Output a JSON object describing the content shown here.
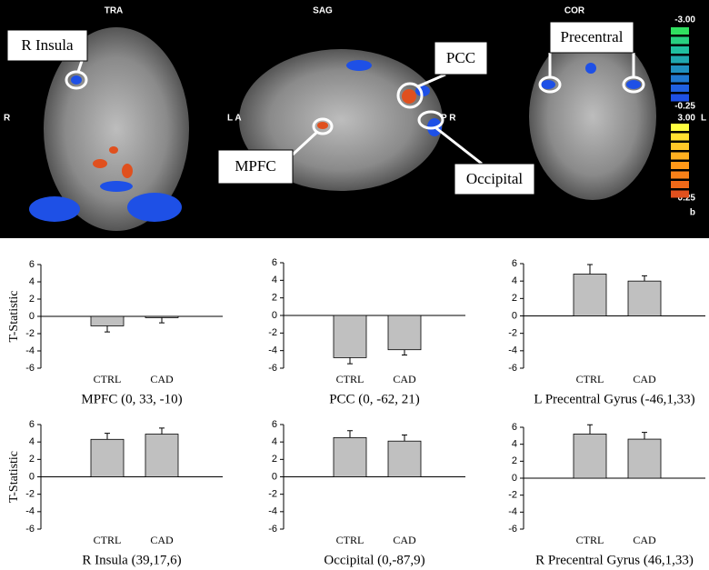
{
  "brain_panel": {
    "views": [
      "TRA",
      "SAG",
      "COR"
    ],
    "orientation_labels": [
      "R",
      "L A",
      "P R",
      "L"
    ],
    "callouts": [
      "R Insula",
      "PCC",
      "MPFC",
      "Occipital",
      "Precentral"
    ],
    "colorbar_labels": [
      "-3.00",
      "-0.25",
      "3.00",
      "0.25",
      "b"
    ]
  },
  "chart_data": [
    {
      "type": "bar",
      "title": "MPFC (0, 33, -10)",
      "y_label": "T-Statistic",
      "categories": [
        "CTRL",
        "CAD"
      ],
      "values": [
        -1.1,
        -0.15
      ],
      "errors": [
        0.7,
        0.6
      ],
      "color": "#c0c0c0",
      "ylim": [
        -6,
        6
      ],
      "yticks": [
        -6,
        -4,
        -2,
        0,
        2,
        4,
        6
      ]
    },
    {
      "type": "bar",
      "title": "PCC (0, -62, 21)",
      "categories": [
        "CTRL",
        "CAD"
      ],
      "values": [
        -4.8,
        -3.9
      ],
      "errors": [
        0.7,
        0.6
      ],
      "color": "#c0c0c0",
      "ylim": [
        -6,
        6
      ],
      "yticks": [
        -6,
        -4,
        -2,
        0,
        2,
        4,
        6
      ]
    },
    {
      "type": "bar",
      "title": "L Precentral Gyrus (-46,1,33)",
      "categories": [
        "CTRL",
        "CAD"
      ],
      "values": [
        4.8,
        4.0
      ],
      "errors": [
        1.1,
        0.6
      ],
      "color": "#c0c0c0",
      "ylim": [
        -6,
        6
      ],
      "yticks": [
        -6,
        -4,
        -2,
        0,
        2,
        4,
        6
      ]
    },
    {
      "type": "bar",
      "title": "R Insula (39,17,6)",
      "y_label": "T-Statistic",
      "categories": [
        "CTRL",
        "CAD"
      ],
      "values": [
        4.3,
        4.9
      ],
      "errors": [
        0.7,
        0.7
      ],
      "color": "#c0c0c0",
      "ylim": [
        -6,
        6
      ],
      "yticks": [
        -6,
        -4,
        -2,
        0,
        2,
        4,
        6
      ]
    },
    {
      "type": "bar",
      "title": "Occipital (0,-87,9)",
      "categories": [
        "CTRL",
        "CAD"
      ],
      "values": [
        4.5,
        4.1
      ],
      "errors": [
        0.8,
        0.7
      ],
      "color": "#c0c0c0",
      "ylim": [
        -6,
        6
      ],
      "yticks": [
        -6,
        -4,
        -2,
        0,
        2,
        4,
        6
      ]
    },
    {
      "type": "bar",
      "title": "R Precentral Gyrus (46,1,33)",
      "categories": [
        "CTRL",
        "CAD"
      ],
      "values": [
        5.2,
        4.6
      ],
      "errors": [
        1.1,
        0.8
      ],
      "color": "#c0c0c0",
      "ylim": [
        -6,
        6
      ],
      "yticks": [
        -6,
        -4,
        -2,
        0,
        2,
        4,
        6
      ]
    }
  ]
}
